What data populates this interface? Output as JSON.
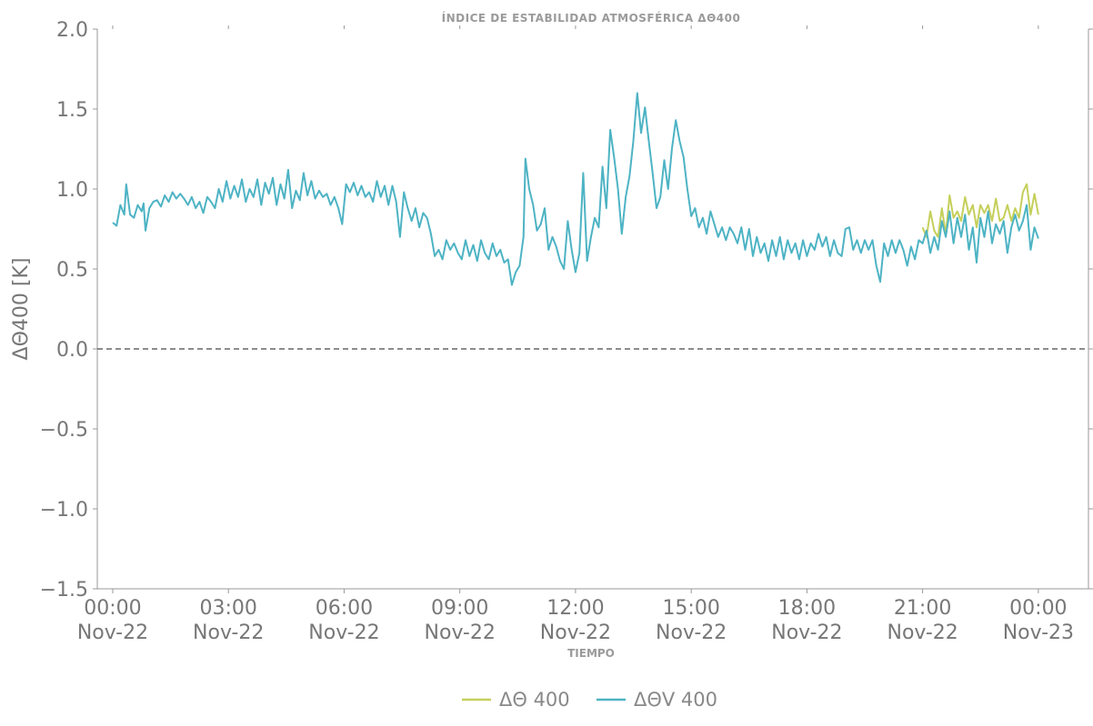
{
  "chart_data": {
    "type": "line",
    "title": "ÍNDICE DE ESTABILIDAD ATMOSFÉRICA ΔΘ400",
    "xlabel": "TIEMPO",
    "ylabel": "ΔΘ400 [K]",
    "ylim": [
      -1.5,
      2.0
    ],
    "xlim_hours": [
      -0.4,
      25.3
    ],
    "yticks": [
      "2.0",
      "1.5",
      "1.0",
      "0.5",
      "0.0",
      "−0.5",
      "−1.0",
      "−1.5"
    ],
    "ytick_values": [
      2.0,
      1.5,
      1.0,
      0.5,
      0.0,
      -0.5,
      -1.0,
      -1.5
    ],
    "xticks": [
      {
        "hour": 0,
        "time": "00:00",
        "date": "Nov-22"
      },
      {
        "hour": 3,
        "time": "03:00",
        "date": "Nov-22"
      },
      {
        "hour": 6,
        "time": "06:00",
        "date": "Nov-22"
      },
      {
        "hour": 9,
        "time": "09:00",
        "date": "Nov-22"
      },
      {
        "hour": 12,
        "time": "12:00",
        "date": "Nov-22"
      },
      {
        "hour": 15,
        "time": "15:00",
        "date": "Nov-22"
      },
      {
        "hour": 18,
        "time": "18:00",
        "date": "Nov-22"
      },
      {
        "hour": 21,
        "time": "21:00",
        "date": "Nov-22"
      },
      {
        "hour": 24,
        "time": "00:00",
        "date": "Nov-23"
      }
    ],
    "reference_line": {
      "y": 0.0,
      "style": "dashed",
      "color": "#666666"
    },
    "grid": false,
    "legend_position": "bottom-center",
    "series": [
      {
        "name": "ΔΘ 400",
        "color": "#c5cf5a",
        "points": [
          [
            21.0,
            0.76
          ],
          [
            21.1,
            0.7
          ],
          [
            21.2,
            0.86
          ],
          [
            21.3,
            0.74
          ],
          [
            21.4,
            0.7
          ],
          [
            21.5,
            0.88
          ],
          [
            21.6,
            0.72
          ],
          [
            21.7,
            0.96
          ],
          [
            21.8,
            0.82
          ],
          [
            21.9,
            0.86
          ],
          [
            22.0,
            0.8
          ],
          [
            22.1,
            0.95
          ],
          [
            22.2,
            0.84
          ],
          [
            22.3,
            0.9
          ],
          [
            22.4,
            0.76
          ],
          [
            22.5,
            0.9
          ],
          [
            22.6,
            0.85
          ],
          [
            22.7,
            0.9
          ],
          [
            22.8,
            0.8
          ],
          [
            22.9,
            0.94
          ],
          [
            23.0,
            0.8
          ],
          [
            23.1,
            0.82
          ],
          [
            23.2,
            0.9
          ],
          [
            23.3,
            0.8
          ],
          [
            23.4,
            0.88
          ],
          [
            23.5,
            0.82
          ],
          [
            23.6,
            0.98
          ],
          [
            23.7,
            1.03
          ],
          [
            23.8,
            0.84
          ],
          [
            23.9,
            0.97
          ],
          [
            24.0,
            0.84
          ]
        ]
      },
      {
        "name": "ΔΘV 400",
        "color": "#4db3c4",
        "points": [
          [
            0.0,
            0.79
          ],
          [
            0.1,
            0.77
          ],
          [
            0.2,
            0.9
          ],
          [
            0.3,
            0.84
          ],
          [
            0.35,
            1.03
          ],
          [
            0.45,
            0.84
          ],
          [
            0.55,
            0.82
          ],
          [
            0.65,
            0.9
          ],
          [
            0.75,
            0.86
          ],
          [
            0.8,
            0.91
          ],
          [
            0.85,
            0.74
          ],
          [
            0.95,
            0.88
          ],
          [
            1.05,
            0.92
          ],
          [
            1.15,
            0.93
          ],
          [
            1.25,
            0.89
          ],
          [
            1.35,
            0.96
          ],
          [
            1.45,
            0.92
          ],
          [
            1.55,
            0.98
          ],
          [
            1.65,
            0.94
          ],
          [
            1.75,
            0.97
          ],
          [
            1.85,
            0.94
          ],
          [
            1.95,
            0.9
          ],
          [
            2.05,
            0.95
          ],
          [
            2.15,
            0.88
          ],
          [
            2.25,
            0.92
          ],
          [
            2.35,
            0.85
          ],
          [
            2.45,
            0.95
          ],
          [
            2.55,
            0.92
          ],
          [
            2.65,
            0.88
          ],
          [
            2.75,
            1.0
          ],
          [
            2.85,
            0.92
          ],
          [
            2.95,
            1.05
          ],
          [
            3.05,
            0.94
          ],
          [
            3.15,
            1.02
          ],
          [
            3.25,
            0.95
          ],
          [
            3.35,
            1.06
          ],
          [
            3.45,
            0.92
          ],
          [
            3.55,
            1.0
          ],
          [
            3.65,
            0.95
          ],
          [
            3.75,
            1.06
          ],
          [
            3.85,
            0.9
          ],
          [
            3.95,
            1.04
          ],
          [
            4.05,
            0.97
          ],
          [
            4.15,
            1.07
          ],
          [
            4.25,
            0.9
          ],
          [
            4.35,
            1.03
          ],
          [
            4.45,
            0.94
          ],
          [
            4.55,
            1.12
          ],
          [
            4.65,
            0.88
          ],
          [
            4.75,
            0.99
          ],
          [
            4.85,
            0.93
          ],
          [
            4.95,
            1.1
          ],
          [
            5.05,
            0.96
          ],
          [
            5.15,
            1.05
          ],
          [
            5.25,
            0.94
          ],
          [
            5.35,
            0.99
          ],
          [
            5.45,
            0.95
          ],
          [
            5.55,
            0.97
          ],
          [
            5.65,
            0.9
          ],
          [
            5.75,
            0.95
          ],
          [
            5.85,
            0.88
          ],
          [
            5.95,
            0.78
          ],
          [
            6.05,
            1.03
          ],
          [
            6.15,
            0.98
          ],
          [
            6.25,
            1.04
          ],
          [
            6.35,
            0.96
          ],
          [
            6.45,
            1.02
          ],
          [
            6.55,
            0.95
          ],
          [
            6.65,
            0.98
          ],
          [
            6.75,
            0.92
          ],
          [
            6.85,
            1.05
          ],
          [
            6.95,
            0.95
          ],
          [
            7.05,
            1.02
          ],
          [
            7.15,
            0.9
          ],
          [
            7.25,
            1.02
          ],
          [
            7.35,
            0.92
          ],
          [
            7.45,
            0.7
          ],
          [
            7.55,
            0.98
          ],
          [
            7.65,
            0.88
          ],
          [
            7.75,
            0.8
          ],
          [
            7.85,
            0.88
          ],
          [
            7.95,
            0.76
          ],
          [
            8.05,
            0.85
          ],
          [
            8.15,
            0.82
          ],
          [
            8.25,
            0.72
          ],
          [
            8.35,
            0.58
          ],
          [
            8.45,
            0.62
          ],
          [
            8.55,
            0.56
          ],
          [
            8.65,
            0.68
          ],
          [
            8.75,
            0.62
          ],
          [
            8.85,
            0.66
          ],
          [
            8.95,
            0.6
          ],
          [
            9.05,
            0.56
          ],
          [
            9.15,
            0.68
          ],
          [
            9.25,
            0.58
          ],
          [
            9.35,
            0.65
          ],
          [
            9.45,
            0.55
          ],
          [
            9.55,
            0.68
          ],
          [
            9.65,
            0.6
          ],
          [
            9.75,
            0.56
          ],
          [
            9.85,
            0.66
          ],
          [
            9.95,
            0.58
          ],
          [
            10.05,
            0.62
          ],
          [
            10.15,
            0.54
          ],
          [
            10.25,
            0.56
          ],
          [
            10.35,
            0.4
          ],
          [
            10.45,
            0.48
          ],
          [
            10.55,
            0.52
          ],
          [
            10.65,
            0.7
          ],
          [
            10.7,
            1.19
          ],
          [
            10.8,
            1.0
          ],
          [
            10.9,
            0.9
          ],
          [
            11.0,
            0.74
          ],
          [
            11.1,
            0.78
          ],
          [
            11.2,
            0.88
          ],
          [
            11.3,
            0.62
          ],
          [
            11.4,
            0.7
          ],
          [
            11.5,
            0.64
          ],
          [
            11.6,
            0.55
          ],
          [
            11.7,
            0.5
          ],
          [
            11.8,
            0.8
          ],
          [
            11.9,
            0.62
          ],
          [
            12.0,
            0.48
          ],
          [
            12.1,
            0.6
          ],
          [
            12.2,
            1.1
          ],
          [
            12.3,
            0.55
          ],
          [
            12.4,
            0.7
          ],
          [
            12.5,
            0.82
          ],
          [
            12.6,
            0.76
          ],
          [
            12.7,
            1.14
          ],
          [
            12.8,
            0.88
          ],
          [
            12.9,
            1.37
          ],
          [
            13.0,
            1.2
          ],
          [
            13.1,
            1.0
          ],
          [
            13.2,
            0.72
          ],
          [
            13.3,
            0.95
          ],
          [
            13.4,
            1.08
          ],
          [
            13.5,
            1.3
          ],
          [
            13.6,
            1.6
          ],
          [
            13.7,
            1.35
          ],
          [
            13.8,
            1.51
          ],
          [
            13.9,
            1.3
          ],
          [
            14.0,
            1.1
          ],
          [
            14.1,
            0.88
          ],
          [
            14.2,
            0.95
          ],
          [
            14.3,
            1.18
          ],
          [
            14.4,
            1.0
          ],
          [
            14.5,
            1.25
          ],
          [
            14.6,
            1.43
          ],
          [
            14.7,
            1.3
          ],
          [
            14.8,
            1.2
          ],
          [
            14.9,
            1.0
          ],
          [
            15.0,
            0.83
          ],
          [
            15.1,
            0.88
          ],
          [
            15.2,
            0.76
          ],
          [
            15.3,
            0.82
          ],
          [
            15.4,
            0.72
          ],
          [
            15.5,
            0.86
          ],
          [
            15.6,
            0.78
          ],
          [
            15.7,
            0.7
          ],
          [
            15.8,
            0.76
          ],
          [
            15.9,
            0.68
          ],
          [
            16.0,
            0.76
          ],
          [
            16.1,
            0.72
          ],
          [
            16.2,
            0.66
          ],
          [
            16.3,
            0.76
          ],
          [
            16.4,
            0.62
          ],
          [
            16.5,
            0.75
          ],
          [
            16.6,
            0.58
          ],
          [
            16.7,
            0.7
          ],
          [
            16.8,
            0.6
          ],
          [
            16.9,
            0.66
          ],
          [
            17.0,
            0.55
          ],
          [
            17.1,
            0.68
          ],
          [
            17.2,
            0.58
          ],
          [
            17.3,
            0.7
          ],
          [
            17.4,
            0.56
          ],
          [
            17.5,
            0.68
          ],
          [
            17.6,
            0.6
          ],
          [
            17.7,
            0.66
          ],
          [
            17.8,
            0.56
          ],
          [
            17.9,
            0.68
          ],
          [
            18.0,
            0.58
          ],
          [
            18.1,
            0.66
          ],
          [
            18.2,
            0.62
          ],
          [
            18.3,
            0.72
          ],
          [
            18.4,
            0.64
          ],
          [
            18.5,
            0.7
          ],
          [
            18.6,
            0.58
          ],
          [
            18.7,
            0.68
          ],
          [
            18.8,
            0.6
          ],
          [
            18.9,
            0.58
          ],
          [
            19.0,
            0.75
          ],
          [
            19.1,
            0.76
          ],
          [
            19.2,
            0.62
          ],
          [
            19.3,
            0.68
          ],
          [
            19.4,
            0.6
          ],
          [
            19.5,
            0.68
          ],
          [
            19.6,
            0.62
          ],
          [
            19.7,
            0.68
          ],
          [
            19.8,
            0.52
          ],
          [
            19.9,
            0.42
          ],
          [
            20.0,
            0.66
          ],
          [
            20.1,
            0.58
          ],
          [
            20.2,
            0.68
          ],
          [
            20.3,
            0.6
          ],
          [
            20.4,
            0.68
          ],
          [
            20.5,
            0.62
          ],
          [
            20.6,
            0.52
          ],
          [
            20.7,
            0.64
          ],
          [
            20.8,
            0.56
          ],
          [
            20.9,
            0.68
          ],
          [
            21.0,
            0.66
          ],
          [
            21.1,
            0.74
          ],
          [
            21.2,
            0.6
          ],
          [
            21.3,
            0.7
          ],
          [
            21.4,
            0.62
          ],
          [
            21.5,
            0.8
          ],
          [
            21.6,
            0.7
          ],
          [
            21.7,
            0.86
          ],
          [
            21.8,
            0.66
          ],
          [
            21.9,
            0.82
          ],
          [
            22.0,
            0.7
          ],
          [
            22.1,
            0.84
          ],
          [
            22.2,
            0.62
          ],
          [
            22.3,
            0.76
          ],
          [
            22.4,
            0.54
          ],
          [
            22.5,
            0.82
          ],
          [
            22.6,
            0.7
          ],
          [
            22.7,
            0.86
          ],
          [
            22.8,
            0.66
          ],
          [
            22.9,
            0.78
          ],
          [
            23.0,
            0.72
          ],
          [
            23.1,
            0.8
          ],
          [
            23.2,
            0.6
          ],
          [
            23.3,
            0.76
          ],
          [
            23.4,
            0.84
          ],
          [
            23.5,
            0.74
          ],
          [
            23.6,
            0.8
          ],
          [
            23.7,
            0.9
          ],
          [
            23.8,
            0.62
          ],
          [
            23.9,
            0.76
          ],
          [
            24.0,
            0.69
          ]
        ]
      }
    ]
  }
}
